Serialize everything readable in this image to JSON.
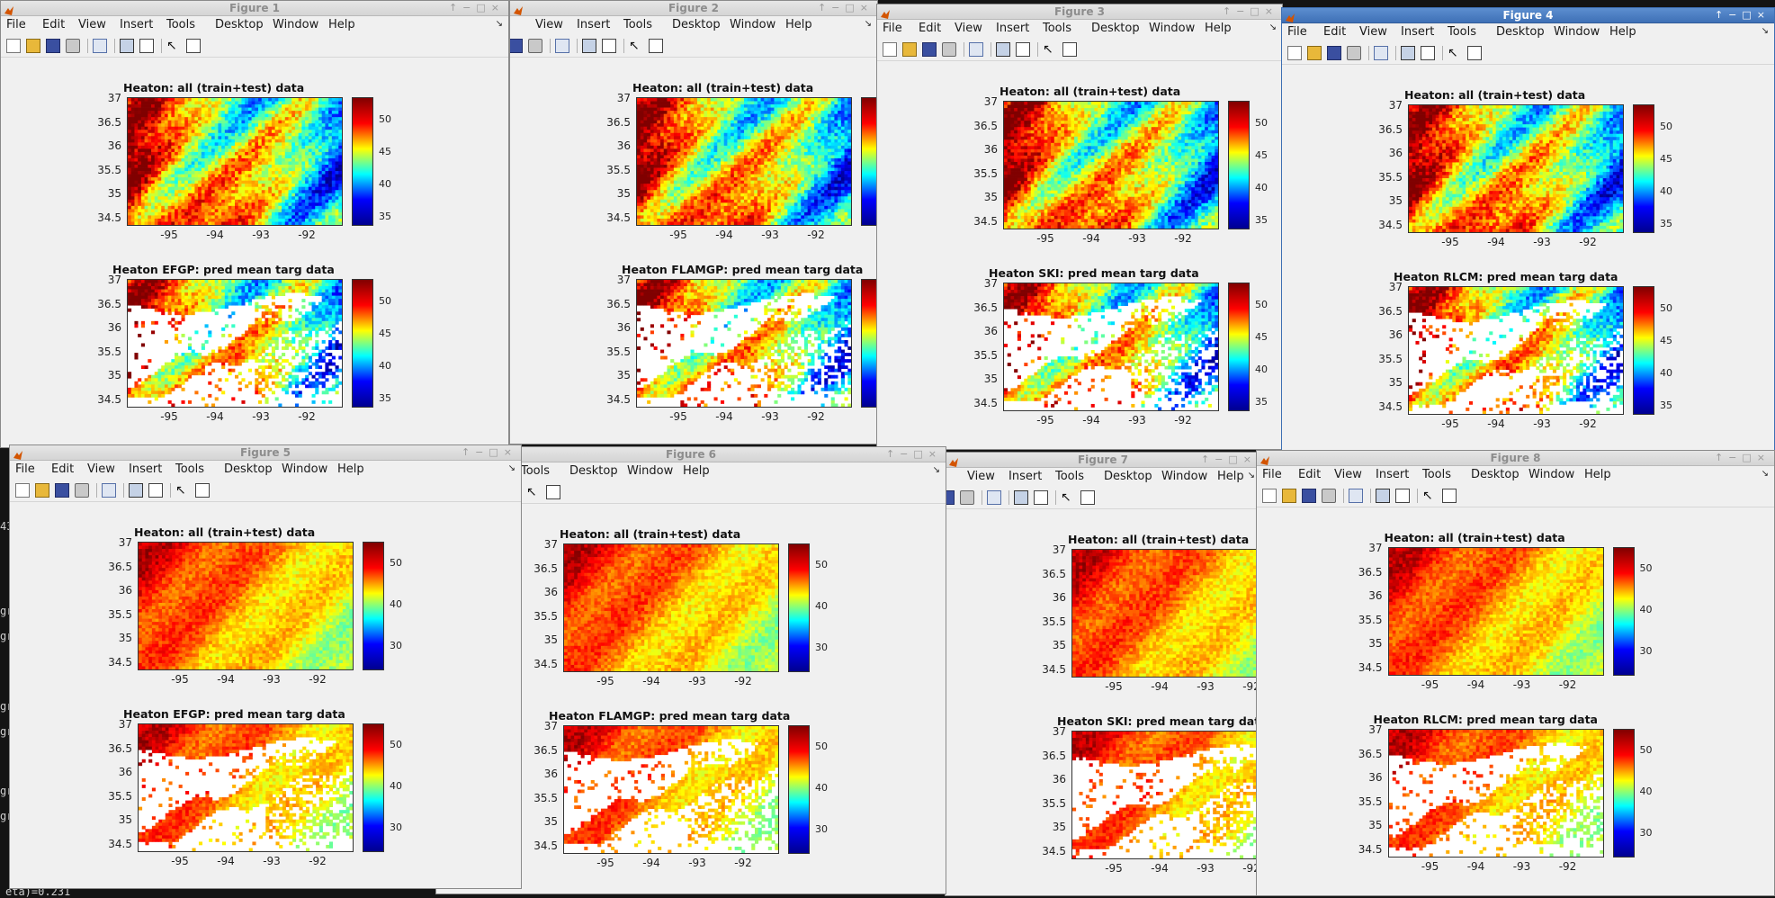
{
  "menu": [
    "File",
    "Edit",
    "View",
    "Insert",
    "Tools",
    "Desktop",
    "Window",
    "Help"
  ],
  "plot_titles": {
    "all": "Heaton: all (train+test) data",
    "efgp": "Heaton EFGP: pred mean targ data",
    "flamgp": "Heaton FLAMGP: pred mean targ data",
    "ski": "Heaton SKI: pred mean targ data",
    "rlcm": "Heaton RLCM: pred mean targ data"
  },
  "axis": {
    "yticks": [
      "37",
      "36.5",
      "36",
      "35.5",
      "35",
      "34.5"
    ],
    "xticks": [
      "-95",
      "-94",
      "-93",
      "-92"
    ]
  },
  "colorbar_a": [
    "50",
    "45",
    "40",
    "35"
  ],
  "colorbar_b": [
    "50",
    "40",
    "30"
  ],
  "terminal": {
    "left_fragments": [
      "43",
      "gr",
      "gr",
      "gr",
      "gr",
      "gr",
      "gr"
    ],
    "bottom_line": "eta)=0.231"
  },
  "windows": [
    {
      "title": "Figure 1",
      "titles": [
        "all",
        "efgp"
      ],
      "scale": "a",
      "style": "cool"
    },
    {
      "title": "Figure 2",
      "titles": [
        "all",
        "flamgp"
      ],
      "scale": "a",
      "style": "cool"
    },
    {
      "title": "Figure 3",
      "titles": [
        "all",
        "ski"
      ],
      "scale": "a",
      "style": "cool"
    },
    {
      "title": "Figure 4",
      "titles": [
        "all",
        "rlcm"
      ],
      "scale": "a",
      "style": "cool"
    },
    {
      "title": "Figure 5",
      "titles": [
        "all",
        "efgp"
      ],
      "scale": "b",
      "style": "warm"
    },
    {
      "title": "Figure 6",
      "titles": [
        "all",
        "flamgp"
      ],
      "scale": "b",
      "style": "warm"
    },
    {
      "title": "Figure 7",
      "titles": [
        "all",
        "ski"
      ],
      "scale": "b",
      "style": "warm"
    },
    {
      "title": "Figure 8",
      "titles": [
        "all",
        "rlcm"
      ],
      "scale": "b",
      "style": "warm"
    }
  ],
  "colors": {
    "jet": [
      "#00008f",
      "#0000ff",
      "#00ffff",
      "#ffff00",
      "#ff0000",
      "#800000"
    ],
    "active_title": "#3e70b6"
  },
  "icons": [
    "new-figure-icon",
    "open-file-icon",
    "save-icon",
    "print-icon",
    "link-plot-icon",
    "dock-icon",
    "data-cursor-icon",
    "pointer-icon",
    "property-editor-icon"
  ]
}
